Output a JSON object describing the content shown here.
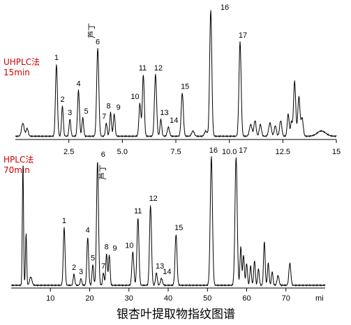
{
  "caption": "银杏叶提取物指纹图谱",
  "chart_data": [
    {
      "type": "line",
      "method": [
        "UHPLC法",
        "15min"
      ],
      "x_unit_label": "",
      "xlim": [
        0,
        15
      ],
      "x_ticks": [
        "2.5",
        "5.0",
        "7.5",
        "10.0",
        "12.5",
        "15"
      ],
      "x_tick_values": [
        2.5,
        5.0,
        7.5,
        10.0,
        12.5,
        15
      ],
      "ylim": [
        0,
        100
      ],
      "baseline": 2.5,
      "peaks": [
        {
          "label": "1",
          "x": 1.92,
          "height": 55,
          "sigma": 0.045
        },
        {
          "label": "2",
          "x": 2.2,
          "height": 23,
          "sigma": 0.04
        },
        {
          "label": "3",
          "x": 2.55,
          "height": 13,
          "sigma": 0.04
        },
        {
          "label": "4",
          "x": 2.95,
          "height": 35,
          "sigma": 0.045
        },
        {
          "label": "5",
          "x": 3.15,
          "height": 14,
          "sigma": 0.04
        },
        {
          "label": "6",
          "x": 3.85,
          "height": 67,
          "sigma": 0.05
        },
        {
          "label": "7",
          "x": 4.25,
          "height": 10,
          "sigma": 0.04
        },
        {
          "label": "8",
          "x": 4.45,
          "height": 18,
          "sigma": 0.04
        },
        {
          "label": "9",
          "x": 4.62,
          "height": 17,
          "sigma": 0.04
        },
        {
          "label": "10",
          "x": 5.82,
          "height": 25,
          "sigma": 0.045
        },
        {
          "label": "11",
          "x": 5.98,
          "height": 47,
          "sigma": 0.045
        },
        {
          "label": "12",
          "x": 6.55,
          "height": 47,
          "sigma": 0.05
        },
        {
          "label": "13",
          "x": 6.8,
          "height": 13,
          "sigma": 0.04
        },
        {
          "label": "14",
          "x": 7.15,
          "height": 7,
          "sigma": 0.05
        },
        {
          "label": "15",
          "x": 7.8,
          "height": 33,
          "sigma": 0.05
        },
        {
          "label": "16",
          "x": 9.13,
          "height": 96,
          "sigma": 0.05
        },
        {
          "label": "17",
          "x": 10.5,
          "height": 72,
          "sigma": 0.05
        },
        {
          "label": "",
          "x": 0.35,
          "height": 10,
          "sigma": 0.06
        },
        {
          "label": "",
          "x": 0.55,
          "height": 6,
          "sigma": 0.05
        },
        {
          "label": "",
          "x": 8.3,
          "height": 4,
          "sigma": 0.06
        },
        {
          "label": "",
          "x": 8.9,
          "height": 4,
          "sigma": 0.06
        },
        {
          "label": "",
          "x": 11.0,
          "height": 9,
          "sigma": 0.06
        },
        {
          "label": "",
          "x": 11.2,
          "height": 12,
          "sigma": 0.05
        },
        {
          "label": "",
          "x": 11.45,
          "height": 9,
          "sigma": 0.05
        },
        {
          "label": "",
          "x": 11.9,
          "height": 10,
          "sigma": 0.06
        },
        {
          "label": "",
          "x": 12.15,
          "height": 8,
          "sigma": 0.05
        },
        {
          "label": "",
          "x": 12.4,
          "height": 12,
          "sigma": 0.05
        },
        {
          "label": "",
          "x": 12.75,
          "height": 17,
          "sigma": 0.045
        },
        {
          "label": "",
          "x": 12.9,
          "height": 11,
          "sigma": 0.04
        },
        {
          "label": "",
          "x": 13.05,
          "height": 42,
          "sigma": 0.05
        },
        {
          "label": "",
          "x": 13.25,
          "height": 30,
          "sigma": 0.05
        },
        {
          "label": "",
          "x": 13.4,
          "height": 14,
          "sigma": 0.05
        },
        {
          "label": "",
          "x": 14.3,
          "height": 4,
          "sigma": 0.2
        }
      ]
    },
    {
      "type": "line",
      "method": [
        "HPLC法",
        "70min"
      ],
      "x_unit_label": "mi",
      "xlim": [
        0,
        80
      ],
      "x_ticks": [
        "10",
        "20",
        "30",
        "40",
        "50",
        "60",
        "70"
      ],
      "x_tick_values": [
        10,
        20,
        30,
        40,
        50,
        60,
        70
      ],
      "ylim": [
        0,
        100
      ],
      "baseline": 2,
      "peaks": [
        {
          "label": "1",
          "x": 13.5,
          "height": 42,
          "sigma": 0.22
        },
        {
          "label": "2",
          "x": 16.0,
          "height": 8,
          "sigma": 0.2
        },
        {
          "label": "3",
          "x": 17.8,
          "height": 5,
          "sigma": 0.2
        },
        {
          "label": "4",
          "x": 19.5,
          "height": 35,
          "sigma": 0.22
        },
        {
          "label": "5",
          "x": 20.8,
          "height": 15,
          "sigma": 0.2
        },
        {
          "label": "6",
          "x": 22.0,
          "height": 90,
          "sigma": 0.25
        },
        {
          "label": "7",
          "x": 23.5,
          "height": 9,
          "sigma": 0.2
        },
        {
          "label": "8",
          "x": 24.3,
          "height": 23,
          "sigma": 0.2
        },
        {
          "label": "9",
          "x": 25.0,
          "height": 22,
          "sigma": 0.2
        },
        {
          "label": "10",
          "x": 31.0,
          "height": 24,
          "sigma": 0.25
        },
        {
          "label": "11",
          "x": 32.3,
          "height": 49,
          "sigma": 0.25
        },
        {
          "label": "12",
          "x": 35.5,
          "height": 58,
          "sigma": 0.25
        },
        {
          "label": "13",
          "x": 37.0,
          "height": 9,
          "sigma": 0.22
        },
        {
          "label": "14",
          "x": 38.3,
          "height": 5,
          "sigma": 0.25
        },
        {
          "label": "15",
          "x": 42.0,
          "height": 37,
          "sigma": 0.25
        },
        {
          "label": "16",
          "x": 51.0,
          "height": 93,
          "sigma": 0.28
        },
        {
          "label": "17",
          "x": 57.3,
          "height": 93,
          "sigma": 0.28
        },
        {
          "label": "",
          "x": 3.0,
          "height": 88,
          "sigma": 0.15
        },
        {
          "label": "",
          "x": 3.8,
          "height": 38,
          "sigma": 0.15
        },
        {
          "label": "",
          "x": 5.0,
          "height": 6,
          "sigma": 0.3
        },
        {
          "label": "",
          "x": 58.5,
          "height": 28,
          "sigma": 0.2
        },
        {
          "label": "",
          "x": 59.2,
          "height": 22,
          "sigma": 0.2
        },
        {
          "label": "",
          "x": 60.0,
          "height": 16,
          "sigma": 0.2
        },
        {
          "label": "",
          "x": 61.0,
          "height": 14,
          "sigma": 0.2
        },
        {
          "label": "",
          "x": 62.0,
          "height": 18,
          "sigma": 0.2
        },
        {
          "label": "",
          "x": 63.0,
          "height": 12,
          "sigma": 0.2
        },
        {
          "label": "",
          "x": 64.5,
          "height": 32,
          "sigma": 0.2
        },
        {
          "label": "",
          "x": 65.5,
          "height": 16,
          "sigma": 0.2
        },
        {
          "label": "",
          "x": 66.5,
          "height": 10,
          "sigma": 0.2
        },
        {
          "label": "",
          "x": 68.0,
          "height": 7,
          "sigma": 0.25
        },
        {
          "label": "",
          "x": 71.0,
          "height": 16,
          "sigma": 0.25
        }
      ]
    }
  ]
}
